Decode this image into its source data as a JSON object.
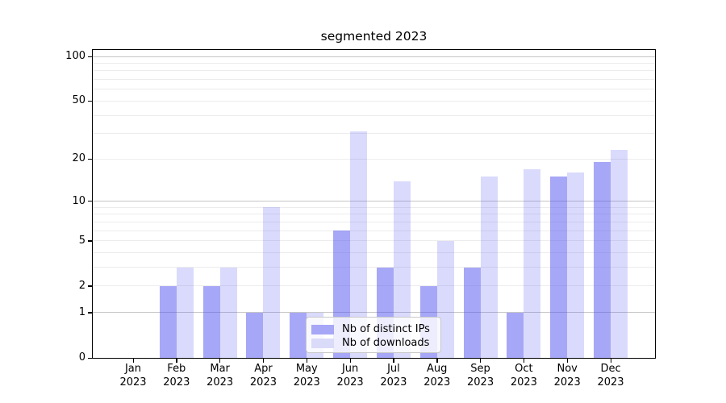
{
  "chart_data": {
    "type": "bar",
    "title": "segmented 2023",
    "categories": [
      "Jan",
      "Feb",
      "Mar",
      "Apr",
      "May",
      "Jun",
      "Jul",
      "Aug",
      "Sep",
      "Oct",
      "Nov",
      "Dec"
    ],
    "year_label": "2023",
    "series": [
      {
        "name": "Nb of distinct IPs",
        "swatch_color": "#a7a7f7",
        "bar_color": "rgba(79,79,239,0.5)",
        "values": [
          0,
          2,
          2,
          1,
          1,
          6,
          3,
          2,
          3,
          1,
          15,
          19
        ]
      },
      {
        "name": "Nb of downloads",
        "swatch_color": "#dadaf9",
        "bar_color": "rgba(79,79,239,0.21)",
        "values": [
          0,
          3,
          3,
          9,
          1,
          31,
          14,
          5,
          15,
          17,
          16,
          23
        ]
      }
    ],
    "yscale": {
      "type": "log1p",
      "top_value": 100
    },
    "yticks": [
      0,
      1,
      2,
      5,
      10,
      20,
      50,
      100
    ],
    "grid": {
      "major": [
        1,
        10,
        100
      ],
      "minor": [
        2,
        3,
        4,
        5,
        6,
        7,
        8,
        9,
        20,
        30,
        40,
        50,
        60,
        70,
        80,
        90
      ],
      "major_color": "#c6c6c6",
      "minor_color": "#ececec"
    },
    "legend_position": "lower center",
    "ylim": [
      0,
      110
    ],
    "xlabel": "",
    "ylabel": ""
  }
}
